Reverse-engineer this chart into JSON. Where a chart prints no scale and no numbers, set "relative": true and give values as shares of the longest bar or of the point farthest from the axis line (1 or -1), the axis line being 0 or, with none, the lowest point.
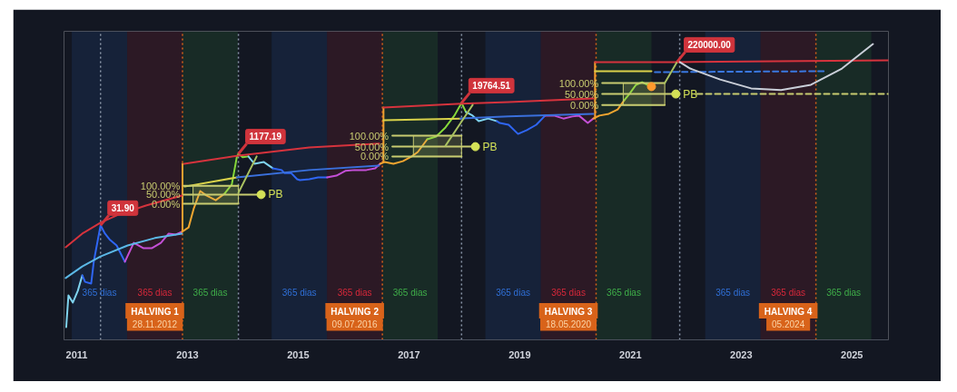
{
  "chart_data": {
    "type": "line",
    "relative": true,
    "xlim": [
      2010.77,
      2025.66
    ],
    "xticks": [
      2011,
      2013,
      2015,
      2017,
      2019,
      2021,
      2023,
      2025
    ],
    "bands": [
      {
        "axis": "x",
        "from": 2010.91,
        "to": 2011.91,
        "label": "365 dias",
        "color": "#2f6fd6"
      },
      {
        "axis": "x",
        "from": 2011.91,
        "to": 2012.91,
        "label": "365 dias",
        "color": "#d8283a"
      },
      {
        "axis": "x",
        "from": 2012.91,
        "to": 2013.91,
        "label": "365 dias",
        "color": "#3fae49"
      },
      {
        "axis": "x",
        "from": 2014.52,
        "to": 2015.52,
        "label": "365 dias",
        "color": "#2f6fd6"
      },
      {
        "axis": "x",
        "from": 2015.52,
        "to": 2016.52,
        "label": "365 dias",
        "color": "#d8283a"
      },
      {
        "axis": "x",
        "from": 2016.52,
        "to": 2017.52,
        "label": "365 dias",
        "color": "#3fae49"
      },
      {
        "axis": "x",
        "from": 2018.38,
        "to": 2019.38,
        "label": "365 dias",
        "color": "#2f6fd6"
      },
      {
        "axis": "x",
        "from": 2019.38,
        "to": 2020.38,
        "label": "365 dias",
        "color": "#d8283a"
      },
      {
        "axis": "x",
        "from": 2020.38,
        "to": 2021.38,
        "label": "365 dias",
        "color": "#3fae49"
      },
      {
        "axis": "x",
        "from": 2022.35,
        "to": 2023.35,
        "label": "365 dias",
        "color": "#2f6fd6"
      },
      {
        "axis": "x",
        "from": 2023.35,
        "to": 2024.35,
        "label": "365 dias",
        "color": "#d8283a"
      },
      {
        "axis": "x",
        "from": 2024.35,
        "to": 2025.35,
        "label": "365 dias",
        "color": "#3fae49"
      }
    ],
    "ref_lines": [
      {
        "axis": "x",
        "value": 2011.43,
        "color": "#8a96a8",
        "line_style": "dotted"
      },
      {
        "axis": "x",
        "value": 2012.91,
        "label": "HALVING 1\n28.11.2012",
        "color": "#d8631a",
        "line_style": "dotted"
      },
      {
        "axis": "x",
        "value": 2013.92,
        "color": "#8a96a8",
        "line_style": "dotted"
      },
      {
        "axis": "x",
        "value": 2016.52,
        "label": "HALVING 2\n09.07.2016",
        "color": "#d8631a",
        "line_style": "dotted"
      },
      {
        "axis": "x",
        "value": 2017.95,
        "color": "#8a96a8",
        "line_style": "dotted"
      },
      {
        "axis": "x",
        "value": 2020.38,
        "label": "HALVING 3\n18.05.2020",
        "color": "#d8631a",
        "line_style": "dotted"
      },
      {
        "axis": "x",
        "value": 2021.89,
        "color": "#8a96a8",
        "line_style": "dotted"
      },
      {
        "axis": "x",
        "value": 2024.35,
        "label": "HALVING 4\n05.2024",
        "color": "#d8631a",
        "line_style": "dotted"
      }
    ],
    "series": [
      {
        "color": "#7fd3ee",
        "x": [
          2010.81,
          2010.85,
          2010.93,
          2011.02,
          2011.1
        ],
        "values": [
          0.043,
          0.15,
          0.126,
          0.166,
          0.218
        ]
      },
      {
        "color": "#2f66f5",
        "x": [
          2011.1,
          2011.15,
          2011.26,
          2011.31,
          2011.43,
          2011.51,
          2011.59,
          2011.72,
          2011.87
        ],
        "values": [
          0.218,
          0.196,
          0.19,
          0.267,
          0.387,
          0.359,
          0.34,
          0.319,
          0.264
        ]
      },
      {
        "color": "#c44fd6",
        "x": [
          2011.87,
          2012.03,
          2012.2,
          2012.36,
          2012.52,
          2012.66,
          2012.79,
          2012.9
        ],
        "values": [
          0.264,
          0.328,
          0.31,
          0.31,
          0.328,
          0.359,
          0.356,
          0.365
        ]
      },
      {
        "color": "#f2a530",
        "x": [
          2012.9,
          2013.02,
          2013.11,
          2013.23,
          2013.34,
          2013.51,
          2013.67
        ],
        "values": [
          0.365,
          0.38,
          0.442,
          0.503,
          0.488,
          0.472,
          0.494
        ]
      },
      {
        "color": "#86d83a",
        "x": [
          2013.67,
          2013.8,
          2013.89,
          2013.92,
          2014.0,
          2014.1
        ],
        "values": [
          0.494,
          0.525,
          0.617,
          0.629,
          0.617,
          0.62
        ]
      },
      {
        "color": "#7fd3ee",
        "x": [
          2014.1,
          2014.21,
          2014.38,
          2014.54
        ],
        "values": [
          0.62,
          0.595,
          0.601,
          0.58
        ]
      },
      {
        "color": "#2f66f5",
        "x": [
          2014.54,
          2014.7,
          2014.75,
          2014.87,
          2014.98,
          2015.03,
          2015.2,
          2015.36,
          2015.52
        ],
        "values": [
          0.58,
          0.574,
          0.564,
          0.564,
          0.543,
          0.54,
          0.543,
          0.549,
          0.549
        ]
      },
      {
        "color": "#c44fd6",
        "x": [
          2015.52,
          2015.69,
          2015.85,
          2016.02,
          2016.23,
          2016.39,
          2016.48
        ],
        "values": [
          0.549,
          0.555,
          0.571,
          0.574,
          0.574,
          0.58,
          0.595
        ]
      },
      {
        "color": "#f2a530",
        "x": [
          2016.48,
          2016.56,
          2016.72,
          2016.89,
          2017.05,
          2017.16,
          2017.33
        ],
        "values": [
          0.595,
          0.601,
          0.595,
          0.604,
          0.62,
          0.635,
          0.678
        ]
      },
      {
        "color": "#86d83a",
        "x": [
          2017.33,
          2017.49,
          2017.66,
          2017.82,
          2017.95,
          2018.03
        ],
        "values": [
          0.678,
          0.687,
          0.718,
          0.758,
          0.801,
          0.77
        ]
      },
      {
        "color": "#7fd3ee",
        "x": [
          2018.03,
          2018.15,
          2018.26,
          2018.43,
          2018.59
        ],
        "values": [
          0.77,
          0.758,
          0.739,
          0.748,
          0.739
        ]
      },
      {
        "color": "#2f66f5",
        "x": [
          2018.59,
          2018.64,
          2018.8,
          2018.97,
          2019.13,
          2019.3,
          2019.46
        ],
        "values": [
          0.739,
          0.733,
          0.727,
          0.696,
          0.709,
          0.727,
          0.758
        ]
      },
      {
        "color": "#c44fd6",
        "x": [
          2019.46,
          2019.62,
          2019.79,
          2019.95,
          2020.07,
          2020.23,
          2020.33
        ],
        "values": [
          0.758,
          0.758,
          0.748,
          0.755,
          0.758,
          0.733,
          0.748
        ]
      },
      {
        "color": "#f2a530",
        "x": [
          2020.33,
          2020.44,
          2020.61,
          2020.77,
          2020.89
        ],
        "values": [
          0.748,
          0.758,
          0.764,
          0.779,
          0.81
        ]
      },
      {
        "color": "#86d83a",
        "x": [
          2020.89,
          2020.98,
          2021.1,
          2021.21,
          2021.31,
          2021.39
        ],
        "values": [
          0.81,
          0.831,
          0.862,
          0.871,
          0.862,
          0.85
        ]
      },
      {
        "color": "#5bb8e6",
        "x": [
          2010.8,
          2011.1,
          2011.43,
          2011.92,
          2012.41,
          2012.9
        ],
        "values": [
          0.209,
          0.248,
          0.282,
          0.319,
          0.344,
          0.359
        ]
      },
      {
        "color": "#f0a030",
        "x": [
          2012.91,
          2012.91
        ],
        "values": [
          0.365,
          0.595
        ]
      },
      {
        "color": "#f0a030",
        "x": [
          2016.54,
          2016.54
        ],
        "values": [
          0.601,
          0.785
        ]
      },
      {
        "color": "#f0a030",
        "x": [
          2020.36,
          2020.36
        ],
        "values": [
          0.748,
          0.939
        ]
      },
      {
        "color": "#d6333d",
        "x": [
          2010.8,
          2011.1,
          2011.43,
          2011.75,
          2012.25,
          2012.9
        ],
        "values": [
          0.313,
          0.359,
          0.396,
          0.423,
          0.454,
          0.488
        ]
      },
      {
        "color": "#d6333d",
        "x": [
          2012.94,
          2013.92,
          2015.2,
          2016.46
        ],
        "values": [
          0.595,
          0.623,
          0.65,
          0.663
        ]
      },
      {
        "color": "#d6333d",
        "x": [
          2016.54,
          2017.95,
          2018.8,
          2020.33
        ],
        "values": [
          0.785,
          0.798,
          0.804,
          0.816
        ]
      },
      {
        "color": "#d6333d",
        "x": [
          2020.36,
          2021.84,
          2025.66
        ],
        "values": [
          0.939,
          0.939,
          0.945
        ]
      },
      {
        "color": "#d9d24a",
        "x": [
          2012.95,
          2013.89
        ],
        "values": [
          0.518,
          0.549
        ]
      },
      {
        "color": "#d9d24a",
        "x": [
          2016.54,
          2017.93
        ],
        "values": [
          0.742,
          0.748
        ]
      },
      {
        "color": "#d9d24a",
        "x": [
          2020.36,
          2021.38
        ],
        "values": [
          0.908,
          0.908
        ]
      },
      {
        "color": "#3a70dc",
        "x": [
          2013.89,
          2015.2,
          2016.46
        ],
        "values": [
          0.549,
          0.574,
          0.589
        ]
      },
      {
        "color": "#3a70dc",
        "x": [
          2017.93,
          2018.8,
          2020.33
        ],
        "values": [
          0.748,
          0.755,
          0.764
        ]
      },
      {
        "color": "#3a78e0",
        "line_style": "dashed",
        "x": [
          2021.44,
          2024.49
        ],
        "values": [
          0.905,
          0.908
        ]
      },
      {
        "color": "#c8cc70",
        "x": [
          2012.93,
          2013.92
        ],
        "values": [
          0.521,
          0.521
        ]
      },
      {
        "color": "#c8cc70",
        "x": [
          2012.93,
          2013.1,
          2013.92,
          2014.33
        ],
        "values": [
          0.491,
          0.491,
          0.491,
          0.491
        ],
        "lower": [
          null,
          0.46,
          0.46,
          null
        ],
        "upper": [
          null,
          0.521,
          0.521,
          null
        ]
      },
      {
        "color": "#c8cc70",
        "x": [
          2012.93,
          2013.92
        ],
        "values": [
          0.46,
          0.46
        ]
      },
      {
        "color": "#c8cc70",
        "x": [
          2016.7,
          2017.95
        ],
        "values": [
          0.69,
          0.69
        ]
      },
      {
        "color": "#c8cc70",
        "x": [
          2016.7,
          2017.08,
          2017.95,
          2018.2
        ],
        "values": [
          0.653,
          0.653,
          0.653,
          0.653
        ],
        "lower": [
          null,
          0.62,
          0.62,
          null
        ],
        "upper": [
          null,
          0.69,
          0.69,
          null
        ]
      },
      {
        "color": "#c8cc70",
        "x": [
          2016.7,
          2017.95
        ],
        "values": [
          0.62,
          0.62
        ]
      },
      {
        "color": "#c8cc70",
        "x": [
          2020.49,
          2021.62
        ],
        "values": [
          0.868,
          0.868
        ]
      },
      {
        "color": "#c8cc70",
        "x": [
          2020.49,
          2020.87,
          2021.62,
          2021.82
        ],
        "values": [
          0.831,
          0.831,
          0.831,
          0.831
        ],
        "lower": [
          null,
          0.794,
          0.794,
          null
        ],
        "upper": [
          null,
          0.868,
          0.868,
          null
        ]
      },
      {
        "color": "#c8cc70",
        "x": [
          2020.49,
          2021.62
        ],
        "values": [
          0.794,
          0.794
        ]
      },
      {
        "color": "#c8cc70",
        "line_style": "dashed",
        "x": [
          2022.2,
          2025.66
        ],
        "values": [
          0.831,
          0.831
        ]
      },
      {
        "color": "#a8c060",
        "x": [
          2013.92,
          2014.25
        ],
        "values": [
          0.497,
          0.62
        ]
      },
      {
        "color": "#a8c060",
        "x": [
          2017.66,
          2018.15
        ],
        "values": [
          0.656,
          0.794
        ]
      },
      {
        "color": "#a8c060",
        "x": [
          2021.62,
          2021.84
        ],
        "values": [
          0.868,
          0.939
        ]
      },
      {
        "color": "#c9ced8",
        "x": [
          2021.89,
          2022.08,
          2022.62,
          2023.18,
          2023.72,
          2024.26,
          2024.82,
          2025.38
        ],
        "values": [
          0.939,
          0.917,
          0.88,
          0.85,
          0.844,
          0.862,
          0.917,
          1.0
        ]
      },
      {
        "type": "scatter",
        "marker": "circle",
        "color": "#ff9a2e",
        "x": [
          2021.38
        ],
        "values": [
          0.856
        ]
      },
      {
        "type": "scatter",
        "marker": "circle",
        "color": "#d4e157",
        "x": [
          2014.33,
          2018.2,
          2021.82
        ],
        "values": [
          0.491,
          0.653,
          0.831
        ]
      }
    ],
    "annotations": [
      {
        "text": "31.90",
        "x": 2011.43,
        "y": 0.387
      },
      {
        "text": "1177.19",
        "x": 2013.92,
        "y": 0.629
      },
      {
        "text": "19764.51",
        "x": 2017.95,
        "y": 0.801
      },
      {
        "text": "220000.00",
        "x": 2021.84,
        "y": 0.939
      },
      {
        "text": "100.00%",
        "x": 2012.93,
        "y": 0.521
      },
      {
        "text": "50.00%",
        "x": 2012.93,
        "y": 0.491
      },
      {
        "text": "0.00%",
        "x": 2012.93,
        "y": 0.46
      },
      {
        "text": "100.00%",
        "x": 2016.7,
        "y": 0.69
      },
      {
        "text": "50.00%",
        "x": 2016.7,
        "y": 0.653
      },
      {
        "text": "0.00%",
        "x": 2016.7,
        "y": 0.62
      },
      {
        "text": "100.00%",
        "x": 2020.49,
        "y": 0.868
      },
      {
        "text": "50.00%",
        "x": 2020.49,
        "y": 0.831
      },
      {
        "text": "0.00%",
        "x": 2020.49,
        "y": 0.794
      },
      {
        "text": "PB",
        "x": 2014.33,
        "y": 0.491
      },
      {
        "text": "PB",
        "x": 2018.2,
        "y": 0.653
      },
      {
        "text": "PB",
        "x": 2021.82,
        "y": 0.831
      }
    ]
  }
}
